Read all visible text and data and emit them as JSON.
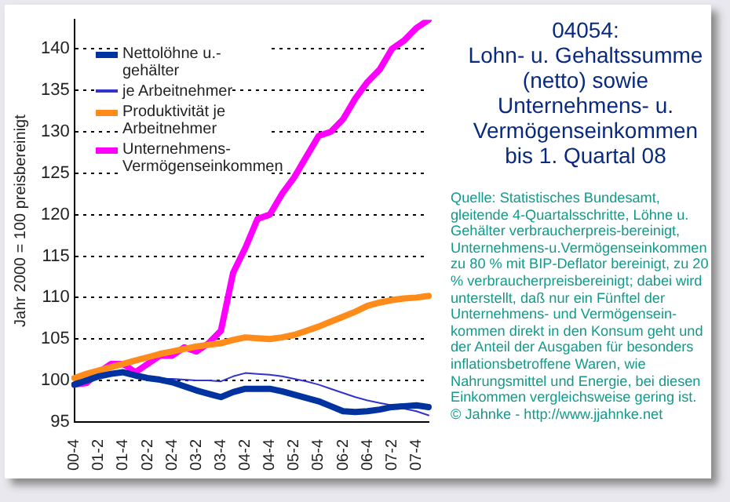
{
  "chart_data": {
    "type": "line",
    "title": "04054:\nLohn- u. Gehaltssumme (netto) sowie Unternehmens- u. Vermögenseinkommen bis 1. Quartal 08",
    "ylabel": "Jahr 2000 = 100 preisbereinigt",
    "categories": [
      "00-4",
      null,
      "01-2",
      null,
      "01-4",
      null,
      "02-2",
      null,
      "02-4",
      null,
      "03-2",
      null,
      "03-4",
      null,
      "04-2",
      null,
      "04-4",
      null,
      "05-2",
      null,
      "05-4",
      null,
      "06-2",
      null,
      "06-4",
      null,
      "07-2",
      null,
      "07-4",
      null
    ],
    "series": [
      {
        "name": "Nettolöhne u.-gehälter",
        "color": "#0033a0",
        "values": [
          99.5,
          100,
          100.5,
          100.8,
          101,
          100.6,
          100.3,
          100.1,
          99.8,
          99.3,
          98.8,
          98.4,
          98,
          98.6,
          99,
          99,
          99,
          98.7,
          98.3,
          97.9,
          97.5,
          96.9,
          96.3,
          96.2,
          96.3,
          96.5,
          96.8,
          96.9,
          97,
          96.8
        ]
      },
      {
        "name": "je Arbeitnehmer",
        "color": "#3333cc",
        "values": [
          99.5,
          100,
          100.3,
          100.6,
          100.8,
          100.5,
          100.3,
          100.2,
          100.2,
          100.1,
          100,
          100,
          99.9,
          100.5,
          100.9,
          100.8,
          100.7,
          100.5,
          100.2,
          99.9,
          99.5,
          99,
          98.5,
          98,
          97.6,
          97.3,
          97,
          96.6,
          96.3,
          95.8
        ]
      },
      {
        "name": "Produktivität je Arbeitnehmer",
        "color": "#ff8c1a",
        "values": [
          100.3,
          100.8,
          101.2,
          101.6,
          102,
          102.4,
          102.8,
          103.2,
          103.5,
          103.8,
          104.1,
          104.3,
          104.5,
          104.9,
          105.2,
          105.1,
          105,
          105.2,
          105.5,
          106,
          106.5,
          107.1,
          107.7,
          108.3,
          109,
          109.4,
          109.7,
          109.9,
          110,
          110.2
        ]
      },
      {
        "name": "Unternehmens-\nVermögenseinkommen",
        "color": "#ff00ff",
        "values": [
          99.5,
          99.7,
          101,
          102,
          102,
          101,
          102,
          103,
          103,
          104,
          103.5,
          104.5,
          106,
          113,
          116,
          119.5,
          120,
          122.5,
          124.5,
          127,
          129.5,
          130,
          131.5,
          134,
          136,
          137.5,
          140,
          141,
          142.5,
          143.5
        ]
      }
    ],
    "ylim": [
      95,
      143.5
    ],
    "yticks": [
      95,
      100,
      105,
      110,
      115,
      120,
      125,
      130,
      135,
      140
    ],
    "grid": "y",
    "legend": "top left",
    "line_style": "solid",
    "marker": "none",
    "annotations": [
      "Quelle: Statistisches Bundesamt, gleitende 4-Quartalsschritte, Löhne u. Gehälter verbraucherpreis-bereinigt, Unternehmens-u.Vermögenseinkommen zu 80 % mit BIP-Deflator bereinigt, zu 20 % verbraucherpreisbereinigt; dabei wird unterstellt, daß nur ein Fünftel der Unternehmens- und Vermögensein-kommen direkt in den Konsum geht und der Anteil der Ausgaben für besonders inflationsbetroffene Waren, wie Nahrungsmittel und Energie, bei diesen Einkommen vergleichsweise gering ist.\n© Jahnke - http://www.jjahnke.net"
    ]
  }
}
